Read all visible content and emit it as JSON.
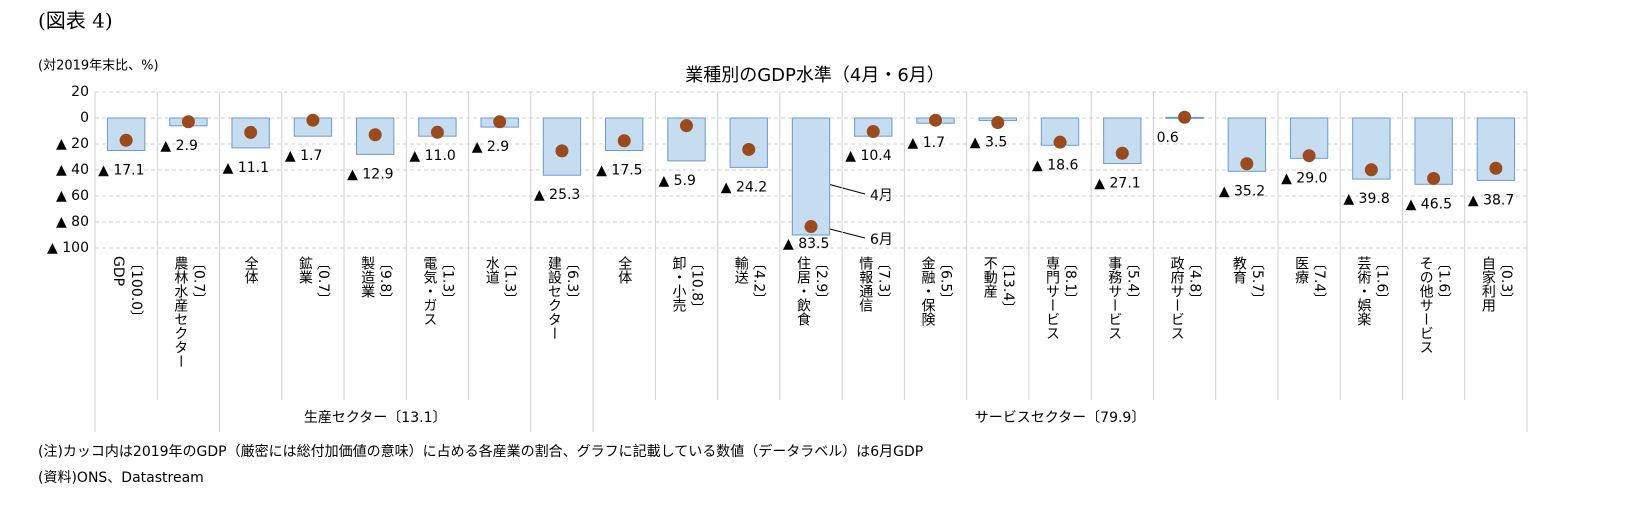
{
  "chart_data": {
    "type": "bar_dot",
    "figure_label": "(図表 4)",
    "unit_label": "(対2019年末比、%)",
    "title": "業種別のGDP水準（4月・6月）",
    "categories": [
      "GDP",
      "農林水産セクター",
      "全体",
      "鉱業",
      "製造業",
      "電気・ガス",
      "水道",
      "建設セクター",
      "全体",
      "卸・小売",
      "輸送",
      "住居・飲食",
      "情報通信",
      "金融・保険",
      "不動産",
      "専門サービス",
      "事務サービス",
      "政府サービス",
      "教育",
      "医療",
      "芸術・娯楽",
      "その他サービス",
      "自家利用"
    ],
    "shares": [
      "〔100.0〕",
      "〔0.7〕",
      null,
      "〔0.7〕",
      "〔9.8〕",
      "〔1.3〕",
      "〔1.3〕",
      "〔6.3〕",
      null,
      "〔10.8〕",
      "〔4.2〕",
      "〔2.9〕",
      "〔7.3〕",
      "〔6.5〕",
      "〔13.4〕",
      "〔8.1〕",
      "〔5.4〕",
      "〔4.8〕",
      "〔5.7〕",
      "〔7.4〕",
      "〔1.6〕",
      "〔1.6〕",
      "〔0.3〕"
    ],
    "groups": [
      {
        "label": "生産セクター〔13.1〕",
        "span": [
          2,
          6
        ]
      },
      {
        "label": "サービスセクター〔79.9〕",
        "span": [
          8,
          22
        ]
      }
    ],
    "series": [
      {
        "name": "4月",
        "mark": "bar",
        "color": "#c6dcf0",
        "values": [
          -25,
          -6,
          -23,
          -14,
          -28,
          -14,
          -7,
          -44,
          -25,
          -33,
          -38,
          -90,
          -14,
          -4,
          -2,
          -21,
          -35,
          0.5,
          -41,
          -31,
          -47,
          -51,
          -48
        ]
      },
      {
        "name": "6月",
        "mark": "dot",
        "color": "#9a4a1c",
        "values": [
          -17.1,
          -2.9,
          -11.1,
          -1.7,
          -12.9,
          -11.0,
          -2.9,
          -25.3,
          -17.5,
          -5.9,
          -24.2,
          -83.5,
          -10.4,
          -1.7,
          -3.5,
          -18.6,
          -27.1,
          0.6,
          -35.2,
          -29.0,
          -39.8,
          -46.5,
          -38.7
        ],
        "value_labels": [
          "▲ 17.1",
          "▲ 2.9",
          "▲ 11.1",
          "▲ 1.7",
          "▲ 12.9",
          "▲ 11.0",
          "▲ 2.9",
          "▲ 25.3",
          "▲ 17.5",
          "▲ 5.9",
          "▲ 24.2",
          "▲ 83.5",
          "▲ 10.4",
          "▲ 1.7",
          "▲ 3.5",
          "▲ 18.6",
          "▲ 27.1",
          "0.6",
          "▲ 35.2",
          "▲ 29.0",
          "▲ 39.8",
          "▲ 46.5",
          "▲ 38.7"
        ]
      }
    ],
    "ylim": [
      -100,
      20
    ],
    "yticks": [
      20,
      0,
      {
        "value": -20,
        "label": "▲ 20"
      },
      {
        "value": -40,
        "label": "▲ 40"
      },
      {
        "value": -60,
        "label": "▲ 60"
      },
      {
        "value": -80,
        "label": "▲ 80"
      },
      {
        "value": -100,
        "label": "▲ 100"
      }
    ],
    "grid": true,
    "notes": [
      "(注)カッコ内は2019年のGDP（厳密には総付加価値の意味）に占める各産業の割合、グラフに記載している数値（データラベル）は6月GDP",
      "(資料)ONS、Datastream"
    ]
  }
}
